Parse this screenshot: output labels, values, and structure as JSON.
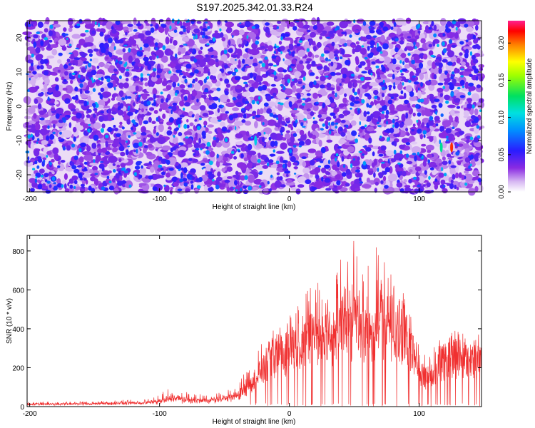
{
  "title": "S197.2025.342.01.33.R24",
  "chart_data": [
    {
      "type": "heatmap",
      "xlabel": "Height of straight line (km)",
      "ylabel": "Frequency (Hz)",
      "xlim": [
        -202,
        148
      ],
      "ylim": [
        -25,
        25
      ],
      "x_ticks": [
        -200,
        -100,
        0,
        100
      ],
      "x_tick_labels": [
        "-200",
        "-100",
        "0",
        "100"
      ],
      "y_ticks": [
        -20,
        -10,
        0,
        10,
        20
      ],
      "y_tick_labels": [
        "-20",
        "-10",
        "0",
        "10",
        "20"
      ],
      "colorbar": {
        "label": "Normalized spectral amplitude",
        "range": [
          0,
          0.23
        ],
        "ticks": [
          0,
          0.05,
          0.1,
          0.15,
          0.2
        ],
        "tick_labels": [
          "0.00",
          "0.05",
          "0.10",
          "0.15",
          "0.20"
        ]
      },
      "notable_features": [
        {
          "x": 125,
          "y": -12,
          "value": 0.21
        },
        {
          "x": 117,
          "y": -12,
          "value": 0.12
        },
        {
          "x": -26,
          "y": -10,
          "value": 0.1
        }
      ],
      "background_level": 0.03
    },
    {
      "type": "line",
      "xlabel": "Height of straight line (km)",
      "ylabel": "SNR (10 * v/v)",
      "xlim": [
        -202,
        148
      ],
      "ylim": [
        0,
        880
      ],
      "x_ticks": [
        -200,
        -100,
        0,
        100
      ],
      "x_tick_labels": [
        "-200",
        "-100",
        "0",
        "100"
      ],
      "y_ticks": [
        0,
        200,
        400,
        600,
        800
      ],
      "y_tick_labels": [
        "0",
        "200",
        "400",
        "600",
        "800"
      ],
      "grid": false,
      "color": "#f03030",
      "envelope": {
        "x": [
          -202,
          -150,
          -110,
          -100,
          -90,
          -80,
          -60,
          -40,
          -30,
          -25,
          -20,
          -15,
          -10,
          -5,
          0,
          5,
          10,
          20,
          25,
          30,
          40,
          45,
          50,
          55,
          60,
          65,
          70,
          75,
          80,
          85,
          90,
          95,
          100,
          105,
          110,
          115,
          120,
          125,
          130,
          135,
          140,
          145,
          148
        ],
        "base": [
          10,
          12,
          15,
          20,
          30,
          25,
          25,
          40,
          100,
          130,
          150,
          200,
          230,
          250,
          260,
          270,
          280,
          320,
          300,
          330,
          350,
          340,
          380,
          330,
          300,
          310,
          390,
          350,
          380,
          300,
          320,
          240,
          170,
          120,
          120,
          200,
          220,
          240,
          260,
          220,
          200,
          230,
          240
        ],
        "peak": [
          25,
          28,
          40,
          60,
          120,
          75,
          60,
          110,
          230,
          290,
          340,
          390,
          410,
          450,
          500,
          540,
          580,
          660,
          620,
          600,
          800,
          870,
          860,
          700,
          760,
          800,
          870,
          680,
          740,
          580,
          620,
          460,
          360,
          260,
          300,
          350,
          330,
          380,
          420,
          380,
          320,
          410,
          420
        ]
      }
    }
  ]
}
